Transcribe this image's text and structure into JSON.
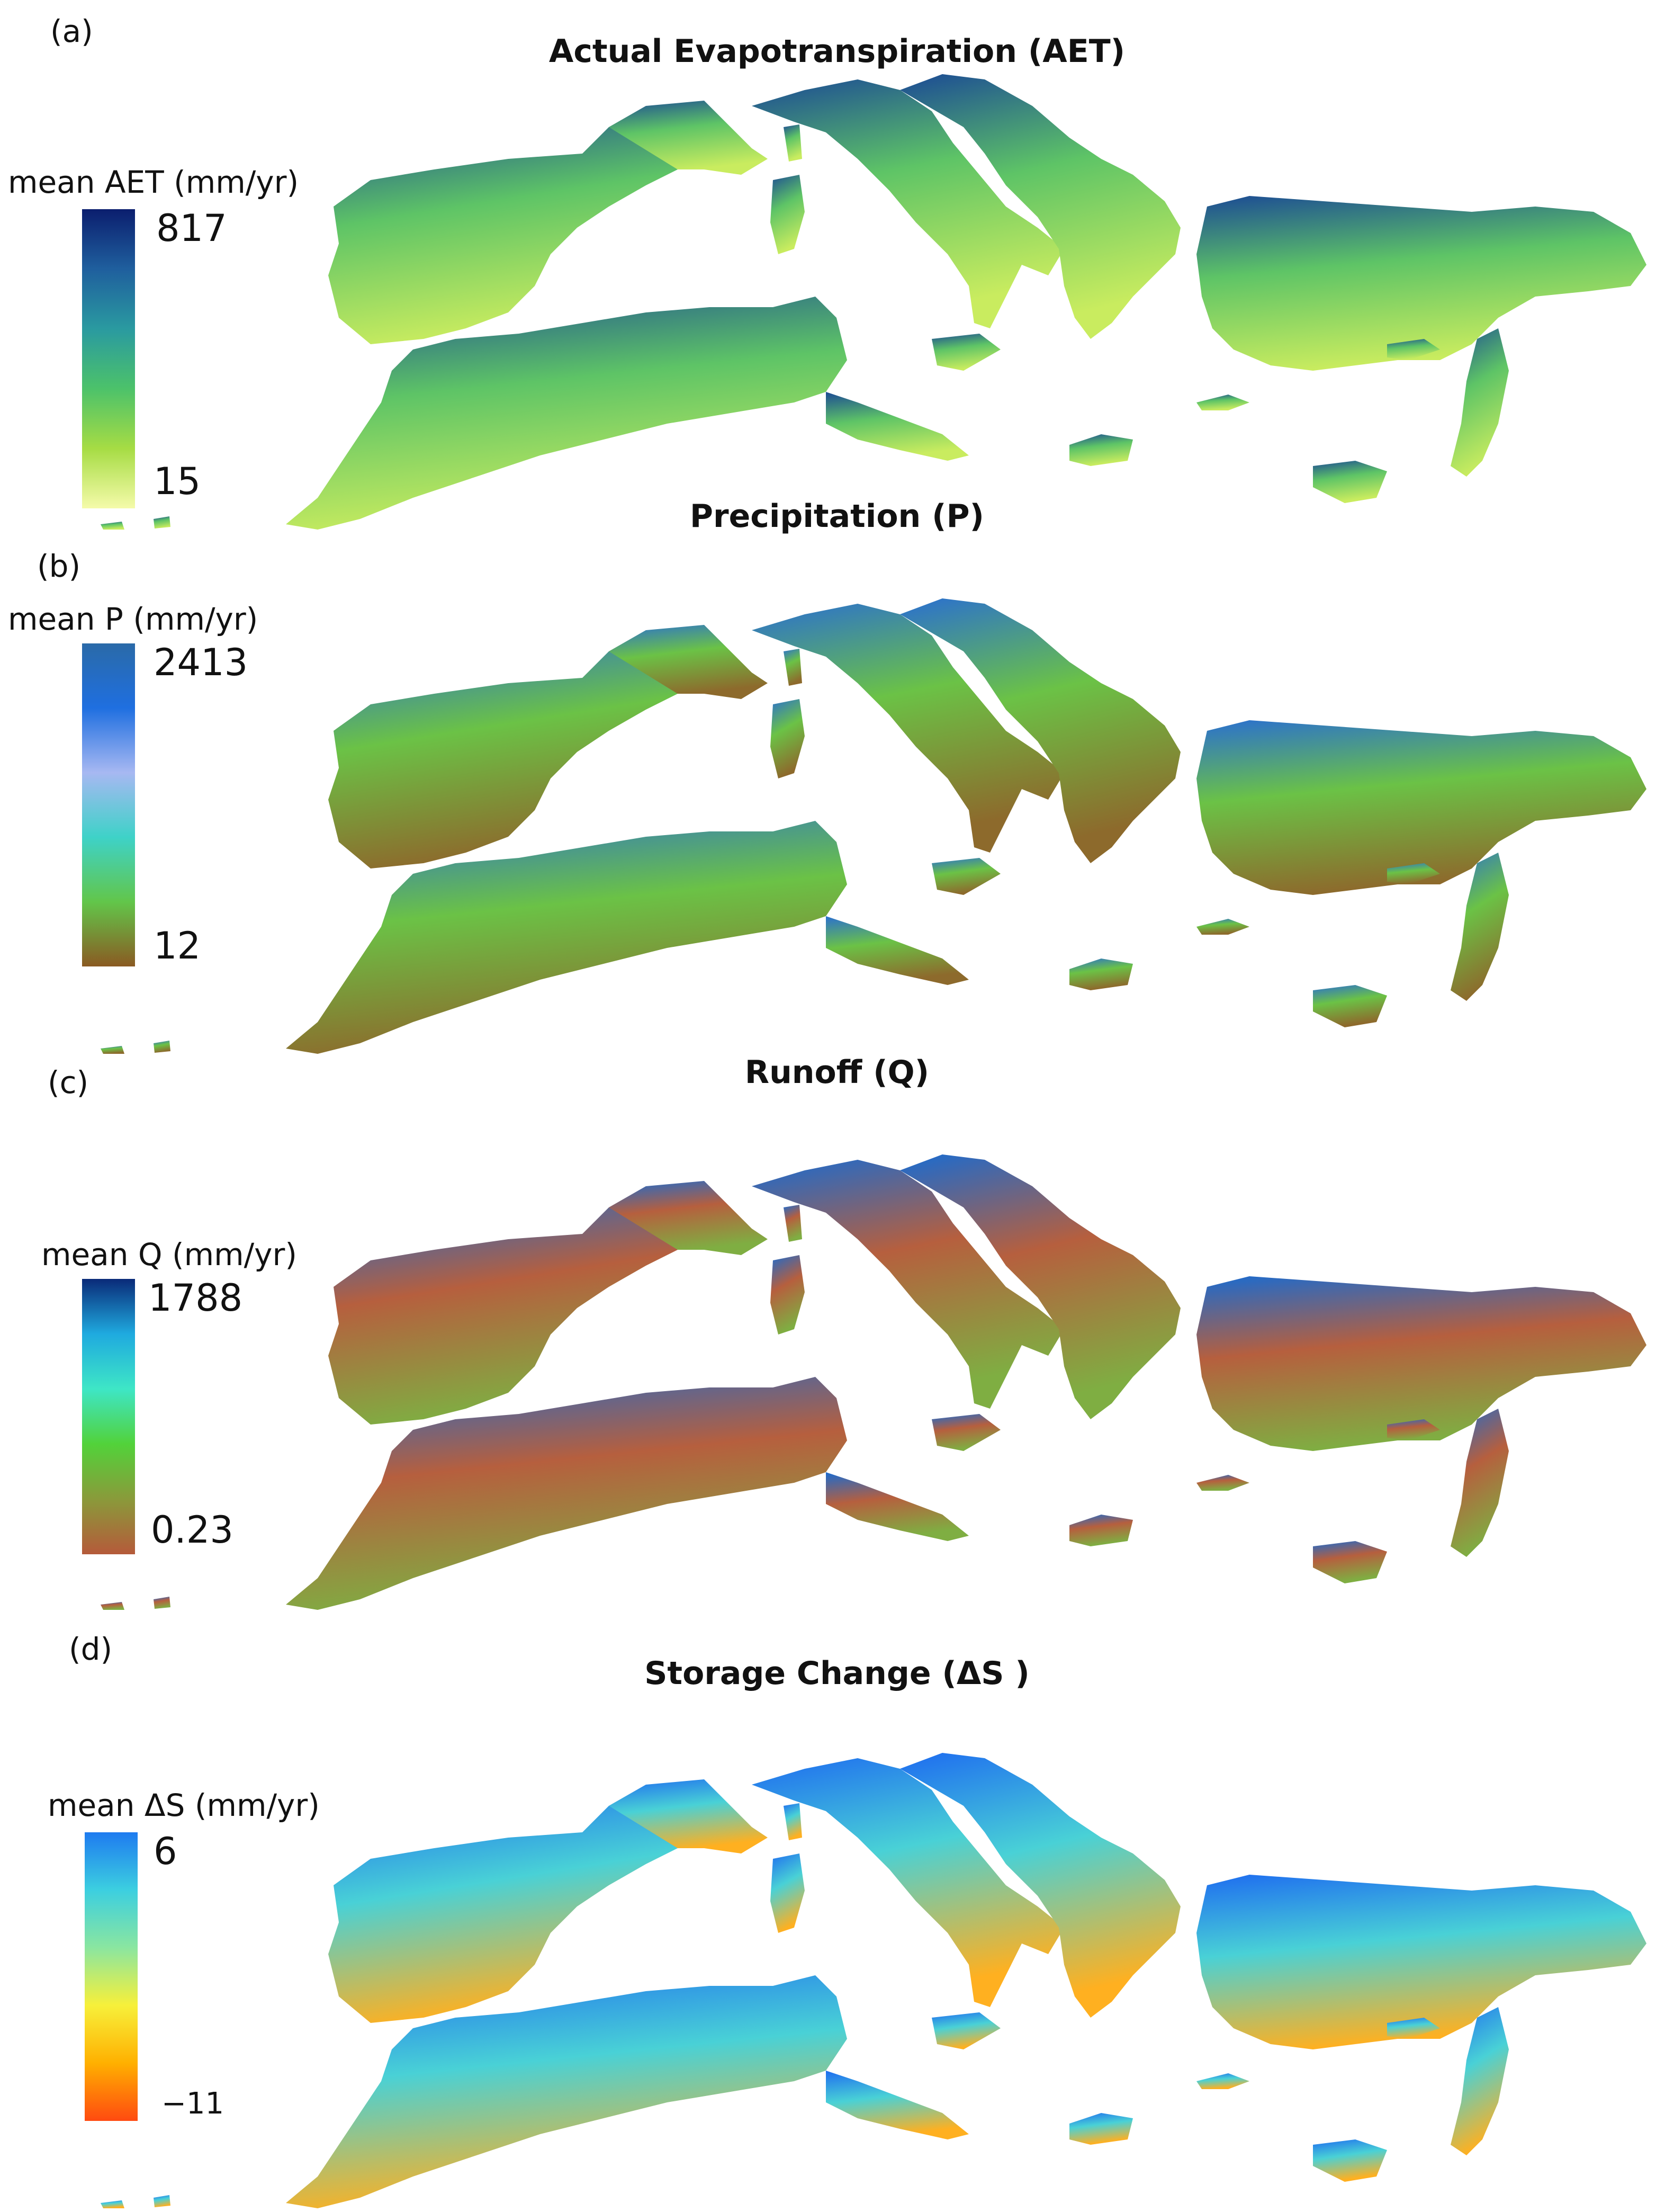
{
  "panels": [
    {
      "letter": "(a)",
      "title": "Actual Evapotranspiration (AET)",
      "colorbar": {
        "label": "mean AET (mm/yr)",
        "max": "817",
        "min": "15",
        "colors": [
          "#0b1e6e",
          "#1f5f9e",
          "#2a9aa0",
          "#4cc26a",
          "#a6dc44",
          "#f5fbaa"
        ]
      },
      "land_colors": {
        "base": "#5ec466",
        "high": "#1b4a95",
        "low": "#c9ec5f"
      }
    },
    {
      "letter": "(b)",
      "title": "Precipitation (P)",
      "colorbar": {
        "label": "mean P (mm/yr)",
        "max": "2413",
        "min": "12",
        "colors": [
          "#2a6aa8",
          "#1f6fe0",
          "#a7b8f2",
          "#3ed2c8",
          "#62c64a",
          "#8a5a22"
        ]
      },
      "land_colors": {
        "base": "#6bc246",
        "high": "#2a6fd0",
        "low": "#8d6a2c"
      }
    },
    {
      "letter": "(c)",
      "title": "Runoff (Q)",
      "colorbar": {
        "label": "mean Q (mm/yr)",
        "max": "1788",
        "min": "0.23",
        "colors": [
          "#0a2a78",
          "#1faadf",
          "#3ee6c6",
          "#52d23a",
          "#8a9a3a",
          "#b55a3a"
        ]
      },
      "land_colors": {
        "base": "#b65f3e",
        "high": "#1a6bd0",
        "low": "#7fae42"
      }
    },
    {
      "letter": "(d)",
      "title": "Storage Change (ΔS )",
      "colorbar": {
        "label": "mean ΔS (mm/yr)",
        "max": "6",
        "min": "−11",
        "colors": [
          "#1e7bf0",
          "#3ccfe0",
          "#8ae6a0",
          "#f7f03a",
          "#ffb000",
          "#ff4a10"
        ]
      },
      "land_colors": {
        "base": "#49d1d6",
        "high": "#1e6cf0",
        "low": "#ffb020"
      }
    }
  ]
}
